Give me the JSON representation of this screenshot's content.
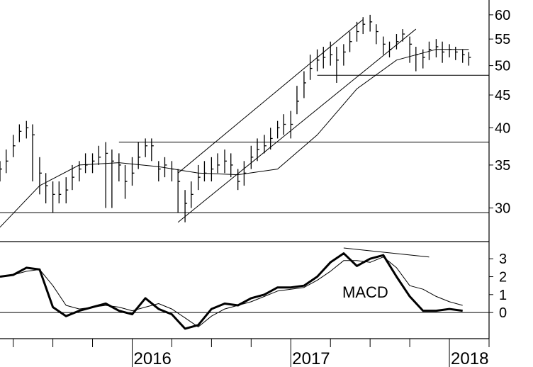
{
  "chart_data": [
    {
      "type": "ohlc",
      "panel": "price",
      "y_scale": "log",
      "ylim": [
        27,
        62
      ],
      "xlim": [
        "2015-03",
        "2018-04"
      ],
      "yticks": [
        "60",
        "55",
        "50",
        "45",
        "40",
        "35",
        "30"
      ],
      "ytick_values": [
        60,
        55,
        50,
        45,
        40,
        35,
        30
      ],
      "xticks": [
        "2016",
        "2017",
        "2018"
      ],
      "xtick_dates": [
        "2016-01",
        "2017-01",
        "2018-01"
      ],
      "grid": false,
      "series": [
        {
          "kind": "price_bars",
          "x": [
            "2015-03-01",
            "2015-03-15",
            "2015-04-01",
            "2015-04-15",
            "2015-05-01",
            "2015-05-15",
            "2015-06-01",
            "2015-06-15",
            "2015-07-01",
            "2015-07-15",
            "2015-08-01",
            "2015-08-15",
            "2015-09-01",
            "2015-09-15",
            "2015-10-01",
            "2015-10-15",
            "2015-11-01",
            "2015-11-15",
            "2015-12-01",
            "2015-12-15",
            "2016-01-01",
            "2016-01-15",
            "2016-02-01",
            "2016-02-15",
            "2016-03-01",
            "2016-03-15",
            "2016-04-01",
            "2016-04-15",
            "2016-05-01",
            "2016-05-15",
            "2016-06-01",
            "2016-06-15",
            "2016-07-01",
            "2016-07-15",
            "2016-08-01",
            "2016-08-15",
            "2016-09-01",
            "2016-09-15",
            "2016-10-01",
            "2016-10-15",
            "2016-11-01",
            "2016-11-15",
            "2016-12-01",
            "2016-12-15",
            "2017-01-01",
            "2017-01-15",
            "2017-02-01",
            "2017-02-15",
            "2017-03-01",
            "2017-03-15",
            "2017-04-01",
            "2017-04-15",
            "2017-05-01",
            "2017-05-15",
            "2017-06-01",
            "2017-06-15",
            "2017-07-01",
            "2017-07-15",
            "2017-08-01",
            "2017-08-15",
            "2017-09-01",
            "2017-09-15",
            "2017-10-01",
            "2017-10-15",
            "2017-11-01",
            "2017-11-15",
            "2017-12-01",
            "2017-12-15",
            "2018-01-01",
            "2018-01-15",
            "2018-02-01",
            "2018-02-15"
          ],
          "close": [
            34.5,
            35.5,
            37.5,
            39.5,
            40.0,
            39.0,
            34.0,
            32.5,
            31.5,
            31.5,
            32.0,
            33.5,
            34.5,
            35.0,
            35.5,
            36.0,
            36.5,
            35.5,
            35.0,
            33.0,
            34.0,
            36.0,
            37.5,
            37.5,
            34.5,
            35.0,
            34.5,
            33.0,
            30.5,
            31.5,
            33.5,
            34.0,
            34.5,
            35.0,
            35.5,
            35.0,
            33.0,
            34.0,
            36.0,
            37.0,
            37.5,
            38.5,
            40.0,
            40.5,
            40.5,
            44.0,
            47.0,
            49.5,
            51.0,
            51.5,
            52.0,
            51.0,
            52.5,
            54.5,
            56.5,
            58.0,
            58.5,
            56.5,
            54.0,
            53.0,
            54.5,
            56.0,
            54.0,
            52.0,
            51.5,
            53.0,
            53.5,
            52.5,
            53.0,
            52.5,
            52.0,
            51.5
          ],
          "high": [
            35.5,
            37.0,
            39.0,
            40.5,
            41.0,
            40.5,
            36.0,
            34.0,
            33.0,
            33.0,
            33.5,
            35.0,
            35.5,
            36.5,
            36.5,
            37.5,
            38.0,
            37.0,
            36.5,
            35.0,
            36.0,
            38.0,
            38.5,
            38.5,
            35.5,
            36.0,
            35.5,
            34.5,
            32.0,
            33.0,
            35.0,
            35.5,
            36.0,
            36.5,
            37.0,
            36.5,
            34.5,
            35.5,
            37.5,
            38.5,
            39.0,
            40.0,
            41.0,
            42.0,
            42.5,
            46.5,
            49.0,
            52.0,
            53.0,
            53.5,
            54.5,
            53.5,
            54.0,
            56.5,
            58.5,
            59.5,
            60.0,
            58.0,
            55.5,
            54.5,
            56.0,
            57.0,
            55.5,
            53.5,
            53.0,
            54.5,
            55.0,
            54.5,
            54.0,
            53.5,
            53.0,
            52.5
          ],
          "low": [
            33.0,
            34.0,
            36.0,
            38.0,
            38.5,
            33.0,
            31.5,
            30.5,
            29.5,
            30.5,
            30.5,
            32.0,
            33.0,
            34.0,
            34.0,
            35.0,
            30.0,
            30.0,
            33.0,
            31.0,
            32.5,
            34.5,
            36.0,
            35.5,
            33.0,
            33.5,
            33.0,
            29.5,
            28.5,
            30.0,
            32.0,
            33.0,
            33.0,
            34.0,
            34.0,
            33.5,
            32.0,
            32.5,
            34.5,
            35.5,
            36.5,
            37.0,
            38.5,
            39.0,
            38.5,
            42.0,
            44.5,
            47.5,
            49.0,
            49.5,
            50.0,
            47.0,
            50.0,
            52.5,
            54.5,
            56.0,
            56.5,
            54.0,
            52.0,
            51.5,
            53.0,
            54.5,
            50.5,
            49.0,
            49.5,
            51.0,
            51.5,
            50.5,
            51.5,
            51.0,
            50.5,
            50.0
          ]
        },
        {
          "kind": "moving_average",
          "x": [
            "2015-03-01",
            "2015-06-01",
            "2015-09-01",
            "2015-12-01",
            "2016-03-01",
            "2016-06-01",
            "2016-09-01",
            "2016-12-01",
            "2017-03-01",
            "2017-06-01",
            "2017-09-01",
            "2017-12-01",
            "2018-02-15"
          ],
          "values": [
            28.0,
            32.5,
            35.0,
            35.3,
            34.8,
            34.0,
            33.8,
            34.5,
            39.0,
            46.0,
            51.0,
            53.0,
            53.0
          ]
        }
      ],
      "annotations": {
        "horizontal_lines": [
          {
            "y": 48.3,
            "x_start": "2017-03-01",
            "x_end": "2018-04-01"
          },
          {
            "y": 38.0,
            "x_start": "2015-12-01",
            "x_end": "2018-04-01"
          },
          {
            "y": 29.5,
            "x_start": "2015-03-01",
            "x_end": "2018-04-01"
          }
        ],
        "trend_lines": [
          {
            "x": [
              "2016-04-15",
              "2017-06-15"
            ],
            "y": [
              34.0,
              59.0
            ]
          },
          {
            "x": [
              "2016-04-15",
              "2017-10-15"
            ],
            "y": [
              28.5,
              57.0
            ]
          }
        ]
      }
    },
    {
      "type": "line",
      "panel": "indicator",
      "label": "MACD",
      "ylim": [
        -1.3,
        3.8
      ],
      "yticks": [
        "3",
        "2",
        "1",
        "0"
      ],
      "ytick_values": [
        3,
        2,
        1,
        0
      ],
      "grid": false,
      "x": [
        "2015-03-01",
        "2015-04-01",
        "2015-05-01",
        "2015-06-01",
        "2015-07-01",
        "2015-08-01",
        "2015-09-01",
        "2015-10-01",
        "2015-11-01",
        "2015-12-01",
        "2016-01-01",
        "2016-02-01",
        "2016-03-01",
        "2016-04-01",
        "2016-05-01",
        "2016-06-01",
        "2016-07-01",
        "2016-08-01",
        "2016-09-01",
        "2016-10-01",
        "2016-11-01",
        "2016-12-01",
        "2017-01-01",
        "2017-02-01",
        "2017-03-01",
        "2017-04-01",
        "2017-05-01",
        "2017-06-01",
        "2017-07-01",
        "2017-08-01",
        "2017-09-01",
        "2017-10-01",
        "2017-11-01",
        "2017-12-01",
        "2018-01-01",
        "2018-02-01"
      ],
      "series": [
        {
          "values": [
            2.0,
            2.1,
            2.5,
            2.4,
            0.3,
            -0.2,
            0.1,
            0.3,
            0.5,
            0.1,
            -0.1,
            0.8,
            0.2,
            -0.1,
            -0.9,
            -0.7,
            0.2,
            0.5,
            0.4,
            0.8,
            1.0,
            1.4,
            1.4,
            1.5,
            2.0,
            2.8,
            3.3,
            2.6,
            3.0,
            3.2,
            2.0,
            0.9,
            0.1,
            0.1,
            0.2,
            0.1
          ],
          "style": "macd"
        },
        {
          "values": [
            2.0,
            2.1,
            2.3,
            2.4,
            1.5,
            0.4,
            0.2,
            0.3,
            0.4,
            0.3,
            0.1,
            0.3,
            0.5,
            0.2,
            -0.3,
            -0.8,
            -0.2,
            0.2,
            0.4,
            0.6,
            0.9,
            1.2,
            1.3,
            1.4,
            1.8,
            2.3,
            2.9,
            2.9,
            2.8,
            3.1,
            2.5,
            1.5,
            1.3,
            0.9,
            0.6,
            0.4
          ],
          "style": "signal"
        }
      ],
      "annotations": {
        "zero_line": 0,
        "divergence_line": {
          "x": [
            "2017-05-01",
            "2017-11-15"
          ],
          "y": [
            3.6,
            3.1
          ]
        }
      }
    }
  ]
}
